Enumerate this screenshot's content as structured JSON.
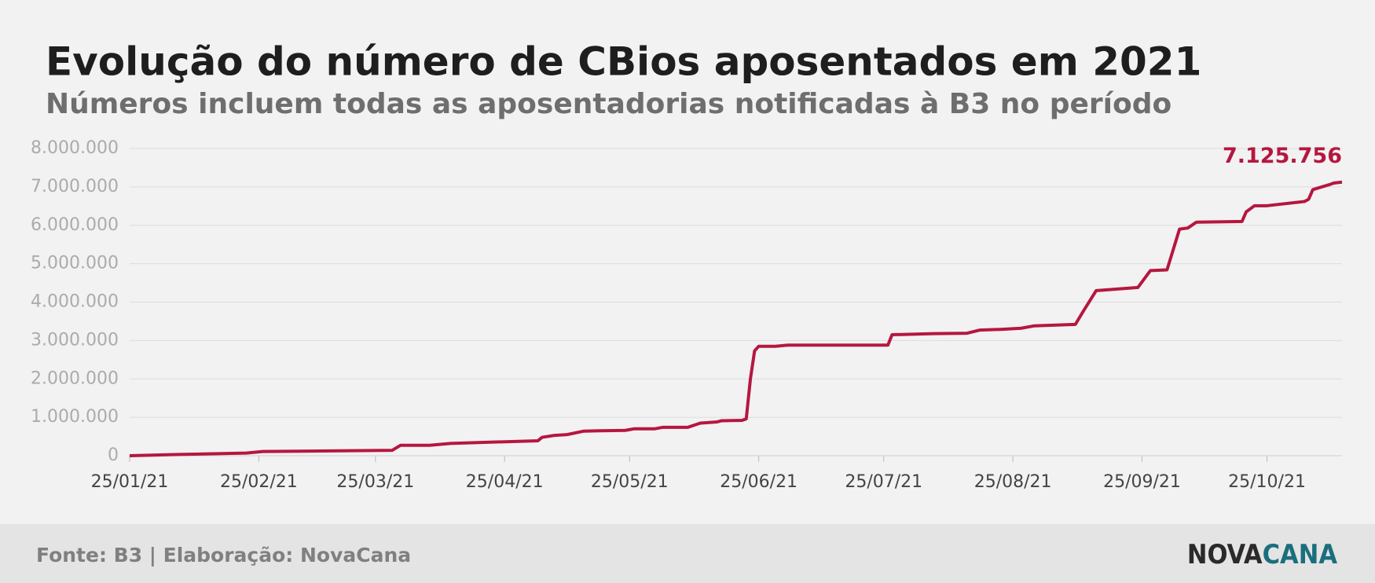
{
  "chart_data": {
    "type": "line",
    "title": "Evolução do número de CBios aposentados em 2021",
    "subtitle": "Números incluem todas as aposentadorias notificadas à B3 no período",
    "source": "Fonte: B3 | Elaboração: NovaCana",
    "logo": [
      "NOVA",
      "CANA"
    ],
    "x": [
      "2021-01-25",
      "2021-02-05",
      "2021-02-22",
      "2021-02-26",
      "2021-03-29",
      "2021-03-31",
      "2021-04-07",
      "2021-04-12",
      "2021-05-03",
      "2021-05-04",
      "2021-05-07",
      "2021-05-10",
      "2021-05-14",
      "2021-05-18",
      "2021-05-24",
      "2021-05-26",
      "2021-05-31",
      "2021-06-02",
      "2021-06-08",
      "2021-06-11",
      "2021-06-15",
      "2021-06-16",
      "2021-06-21",
      "2021-06-22",
      "2021-06-23",
      "2021-06-24",
      "2021-06-25",
      "2021-06-29",
      "2021-07-02",
      "2021-07-26",
      "2021-07-27",
      "2021-08-06",
      "2021-08-14",
      "2021-08-17",
      "2021-08-22",
      "2021-08-27",
      "2021-08-30",
      "2021-09-09",
      "2021-09-11",
      "2021-09-14",
      "2021-09-24",
      "2021-09-27",
      "2021-10-01",
      "2021-10-04",
      "2021-10-06",
      "2021-10-08",
      "2021-10-13",
      "2021-10-19",
      "2021-10-20",
      "2021-10-22",
      "2021-10-25",
      "2021-11-03",
      "2021-11-04",
      "2021-11-05",
      "2021-11-09",
      "2021-11-10",
      "2021-11-12"
    ],
    "series": [
      {
        "name": "CBios aposentados",
        "color": "#b5173f",
        "values": [
          0,
          30000,
          70000,
          110000,
          140000,
          270000,
          270000,
          320000,
          390000,
          480000,
          530000,
          550000,
          640000,
          650000,
          660000,
          700000,
          700000,
          740000,
          740000,
          850000,
          880000,
          910000,
          920000,
          960000,
          2000000,
          2730000,
          2850000,
          2850000,
          2880000,
          2880000,
          3150000,
          3180000,
          3190000,
          3270000,
          3290000,
          3320000,
          3380000,
          3420000,
          3780000,
          4300000,
          4380000,
          4820000,
          4840000,
          5900000,
          5930000,
          6080000,
          6090000,
          6100000,
          6350000,
          6510000,
          6510000,
          6620000,
          6680000,
          6930000,
          7060000,
          7100000,
          7125756
        ],
        "value_labels": [
          null,
          null,
          null,
          null,
          null,
          null,
          null,
          null,
          null,
          null,
          null,
          null,
          null,
          null,
          null,
          null,
          null,
          null,
          null,
          null,
          null,
          null,
          null,
          null,
          null,
          null,
          null,
          null,
          null,
          null,
          null,
          null,
          null,
          null,
          null,
          null,
          null,
          null,
          null,
          null,
          null,
          null,
          null,
          null,
          null,
          null,
          null,
          null,
          null,
          null,
          null,
          null,
          null,
          null,
          null,
          null,
          "7.125.756"
        ]
      }
    ],
    "xlim": [
      "2021-01-25",
      "2021-11-12"
    ],
    "xticks": [
      {
        "value": "2021-01-25",
        "label": "25/01/21"
      },
      {
        "value": "2021-02-25",
        "label": "25/02/21"
      },
      {
        "value": "2021-03-25",
        "label": "25/03/21"
      },
      {
        "value": "2021-04-25",
        "label": "25/04/21"
      },
      {
        "value": "2021-05-25",
        "label": "25/05/21"
      },
      {
        "value": "2021-06-25",
        "label": "25/06/21"
      },
      {
        "value": "2021-07-25",
        "label": "25/07/21"
      },
      {
        "value": "2021-08-25",
        "label": "25/08/21"
      },
      {
        "value": "2021-09-25",
        "label": "25/09/21"
      },
      {
        "value": "2021-10-25",
        "label": "25/10/21"
      }
    ],
    "ylim": [
      0,
      8000000
    ],
    "yticks": [
      0,
      {
        "value": 1000000,
        "label": "1.000.000"
      },
      {
        "value": 2000000,
        "label": "2.000.000"
      },
      {
        "value": 3000000,
        "label": "3.000.000"
      },
      {
        "value": 4000000,
        "label": "4.000.000"
      },
      {
        "value": 5000000,
        "label": "5.000.000"
      },
      {
        "value": 6000000,
        "label": "6.000.000"
      },
      {
        "value": 7000000,
        "label": "7.000.000"
      },
      {
        "value": 8000000,
        "label": "8.000.000"
      }
    ],
    "grid": true
  }
}
